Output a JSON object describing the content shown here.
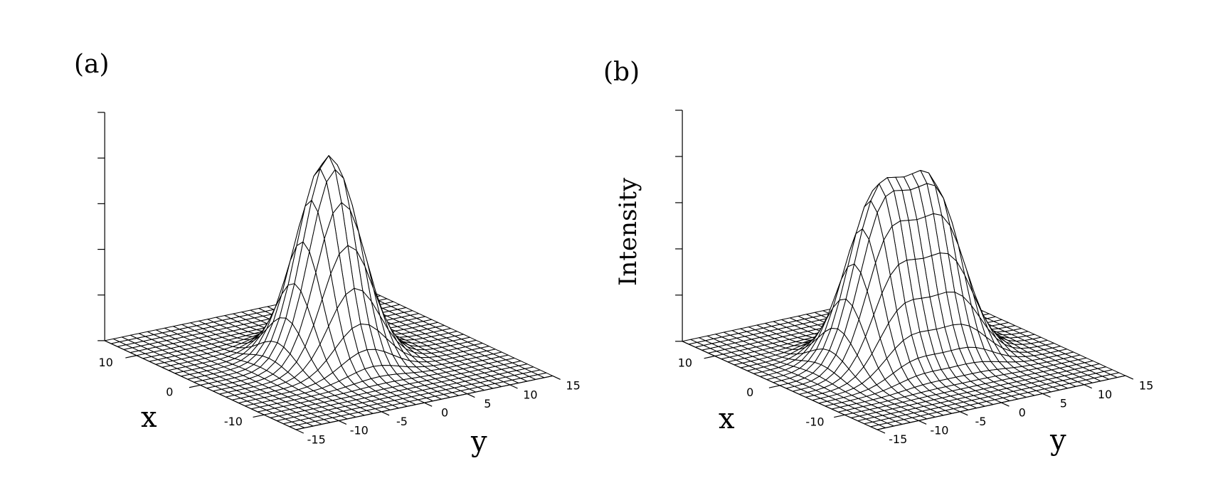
{
  "chart_data": [
    {
      "type": "surface",
      "panel_label": "(a)",
      "xlabel": "x",
      "ylabel": "y",
      "zlabel": "",
      "x_range": [
        -15,
        15
      ],
      "y_range": [
        -15,
        15
      ],
      "x_ticks": [
        -10,
        0,
        10
      ],
      "y_ticks": [
        -15,
        -10,
        -5,
        0,
        5,
        10,
        15
      ],
      "z_tick_labels": "none",
      "grid_points": 31,
      "surface": {
        "kind": "gaussian",
        "width_x": 4.2,
        "width_y": 4.2,
        "peaks": [
          {
            "x": 0,
            "y": 0,
            "amplitude": 1.0
          }
        ]
      }
    },
    {
      "type": "surface",
      "panel_label": "(b)",
      "xlabel": "x",
      "ylabel": "y",
      "zlabel": "Intensity",
      "x_range": [
        -15,
        15
      ],
      "y_range": [
        -15,
        15
      ],
      "x_ticks": [
        -10,
        0,
        10
      ],
      "y_ticks": [
        -15,
        -10,
        -5,
        0,
        5,
        10,
        15
      ],
      "z_tick_labels": "none",
      "grid_points": 31,
      "surface": {
        "kind": "sum-of-gaussians",
        "width_x": 4.2,
        "width_y": 4.2,
        "peaks": [
          {
            "x": 0,
            "y": -3.2,
            "amplitude": 0.8
          },
          {
            "x": 0,
            "y": 3.2,
            "amplitude": 0.8
          }
        ]
      }
    }
  ]
}
